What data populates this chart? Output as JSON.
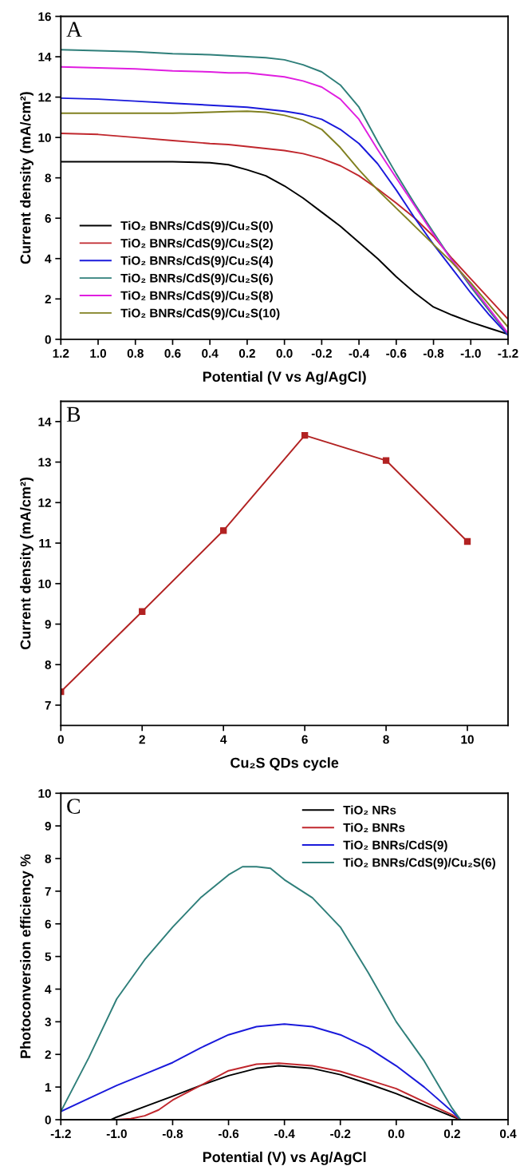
{
  "chart_data": [
    {
      "type": "line",
      "title": "A",
      "xlabel": "Potential (V vs Ag/AgCl)",
      "ylabel": "Current density (mA/cm²)",
      "xlim": [
        1.2,
        -1.2
      ],
      "ylim": [
        0,
        16
      ],
      "xticks": [
        1.2,
        {
          "value": 1,
          "label": "1.0"
        },
        0.8,
        0.6,
        0.4,
        0.2,
        {
          "value": 0,
          "label": "0.0"
        },
        -0.2,
        -0.4,
        -0.6,
        -0.8,
        {
          "value": -1,
          "label": "-1.0"
        },
        -1.2
      ],
      "yticks": [
        0,
        2,
        4,
        6,
        8,
        10,
        12,
        14,
        16
      ],
      "legend": "bottom left",
      "x": [
        1.2,
        1.0,
        0.8,
        0.6,
        0.4,
        0.3,
        0.2,
        0.1,
        0.0,
        -0.1,
        -0.2,
        -0.3,
        -0.4,
        -0.5,
        -0.6,
        -0.7,
        -0.8,
        -0.9,
        -1.0,
        -1.1,
        -1.2
      ],
      "series": [
        {
          "name": "TiO₂ BNRs/CdS(9)/Cu₂S(0)",
          "color": "#000000",
          "values": [
            8.8,
            8.8,
            8.8,
            8.8,
            8.75,
            8.65,
            8.4,
            8.1,
            7.6,
            7.0,
            6.3,
            5.6,
            4.8,
            4.0,
            3.1,
            2.3,
            1.6,
            1.2,
            0.85,
            0.55,
            0.25
          ]
        },
        {
          "name": "TiO₂ BNRs/CdS(9)/Cu₂S(2)",
          "color": "#c0272d",
          "values": [
            10.2,
            10.15,
            10.0,
            9.85,
            9.7,
            9.65,
            9.55,
            9.45,
            9.35,
            9.2,
            8.95,
            8.6,
            8.1,
            7.45,
            6.75,
            6.0,
            5.1,
            4.0,
            3.0,
            2.0,
            1.0
          ]
        },
        {
          "name": "TiO₂ BNRs/CdS(9)/Cu₂S(4)",
          "color": "#1a1adb",
          "values": [
            11.95,
            11.9,
            11.8,
            11.7,
            11.6,
            11.55,
            11.5,
            11.4,
            11.3,
            11.15,
            10.9,
            10.4,
            9.7,
            8.7,
            7.4,
            6.0,
            4.7,
            3.5,
            2.3,
            1.2,
            0.2
          ]
        },
        {
          "name": "TiO₂ BNRs/CdS(9)/Cu₂S(6)",
          "color": "#2f7f7a",
          "values": [
            14.35,
            14.3,
            14.25,
            14.15,
            14.1,
            14.05,
            14.0,
            13.95,
            13.85,
            13.6,
            13.25,
            12.6,
            11.5,
            9.8,
            8.2,
            6.7,
            5.3,
            3.9,
            2.6,
            1.4,
            0.25
          ]
        },
        {
          "name": "TiO₂ BNRs/CdS(9)/Cu₂S(8)",
          "color": "#e01ee0",
          "values": [
            13.5,
            13.45,
            13.4,
            13.3,
            13.25,
            13.2,
            13.2,
            13.1,
            13.0,
            12.8,
            12.5,
            11.9,
            10.9,
            9.4,
            8.0,
            6.6,
            5.2,
            3.9,
            2.7,
            1.5,
            0.3
          ]
        },
        {
          "name": "TiO₂ BNRs/CdS(9)/Cu₂S(10)",
          "color": "#808020",
          "values": [
            11.2,
            11.2,
            11.2,
            11.2,
            11.25,
            11.28,
            11.3,
            11.25,
            11.1,
            10.85,
            10.4,
            9.5,
            8.4,
            7.4,
            6.5,
            5.6,
            4.7,
            3.8,
            2.8,
            1.7,
            0.6
          ]
        }
      ]
    },
    {
      "type": "line",
      "title": "B",
      "xlabel": "Cu₂S QDs cycle",
      "ylabel": "Current density (mA/cm²)",
      "xlim": [
        0,
        11
      ],
      "ylim": [
        6.5,
        14.5
      ],
      "xticks": [
        0,
        2,
        4,
        6,
        8,
        10
      ],
      "yticks": [
        7,
        8,
        9,
        10,
        11,
        12,
        13,
        14
      ],
      "marker": "square",
      "x": [
        0,
        2,
        4,
        6,
        8,
        10
      ],
      "series": [
        {
          "color": "#b22222",
          "values": [
            7.33,
            9.31,
            11.31,
            13.66,
            13.04,
            11.04
          ]
        }
      ]
    },
    {
      "type": "line",
      "title": "C",
      "xlabel": "Potential (V) vs Ag/AgCl",
      "ylabel": "Photoconversion efficiency %",
      "xlim": [
        -1.2,
        0.4
      ],
      "ylim": [
        0,
        10
      ],
      "xticks": [
        -1.2,
        {
          "value": -1,
          "label": "-1.0"
        },
        -0.8,
        -0.6,
        -0.4,
        -0.2,
        {
          "value": 0,
          "label": "0.0"
        },
        0.2,
        0.4
      ],
      "yticks": [
        0,
        1,
        2,
        3,
        4,
        5,
        6,
        7,
        8,
        9,
        10
      ],
      "legend": "top right",
      "series": [
        {
          "name": "TiO₂ NRs",
          "color": "#000000",
          "x": [
            -1.02,
            -1.0,
            -0.9,
            -0.8,
            -0.7,
            -0.6,
            -0.5,
            -0.42,
            -0.3,
            -0.2,
            -0.1,
            0.0,
            0.1,
            0.2,
            0.23
          ],
          "values": [
            0,
            0.08,
            0.4,
            0.72,
            1.05,
            1.35,
            1.57,
            1.65,
            1.57,
            1.38,
            1.1,
            0.8,
            0.45,
            0.1,
            0
          ]
        },
        {
          "name": "TiO₂ BNRs",
          "color": "#c0272d",
          "x": [
            -1.0,
            -0.95,
            -0.9,
            -0.85,
            -0.8,
            -0.7,
            -0.6,
            -0.5,
            -0.42,
            -0.3,
            -0.2,
            -0.1,
            0.0,
            0.1,
            0.2,
            0.23
          ],
          "values": [
            0,
            0.03,
            0.12,
            0.3,
            0.6,
            1.05,
            1.5,
            1.7,
            1.73,
            1.65,
            1.48,
            1.22,
            0.95,
            0.55,
            0.15,
            0
          ]
        },
        {
          "name": "TiO₂ BNRs/CdS(9)",
          "color": "#1a1adb",
          "x": [
            -1.2,
            -1.1,
            -1.0,
            -0.9,
            -0.8,
            -0.7,
            -0.6,
            -0.5,
            -0.4,
            -0.3,
            -0.2,
            -0.1,
            0.0,
            0.1,
            0.2,
            0.23
          ],
          "values": [
            0.25,
            0.65,
            1.05,
            1.4,
            1.75,
            2.2,
            2.6,
            2.85,
            2.93,
            2.85,
            2.6,
            2.2,
            1.65,
            1.0,
            0.25,
            0
          ]
        },
        {
          "name": "TiO₂ BNRs/CdS(9)/Cu₂S(6)",
          "color": "#2f7f7a",
          "x": [
            -1.2,
            -1.1,
            -1.0,
            -0.9,
            -0.8,
            -0.7,
            -0.6,
            -0.55,
            -0.5,
            -0.45,
            -0.4,
            -0.3,
            -0.2,
            -0.1,
            0.0,
            0.1,
            0.2,
            0.23
          ],
          "values": [
            0.25,
            1.9,
            3.7,
            4.9,
            5.9,
            6.8,
            7.5,
            7.75,
            7.75,
            7.7,
            7.35,
            6.8,
            5.9,
            4.5,
            3.0,
            1.8,
            0.35,
            0
          ]
        }
      ]
    }
  ]
}
